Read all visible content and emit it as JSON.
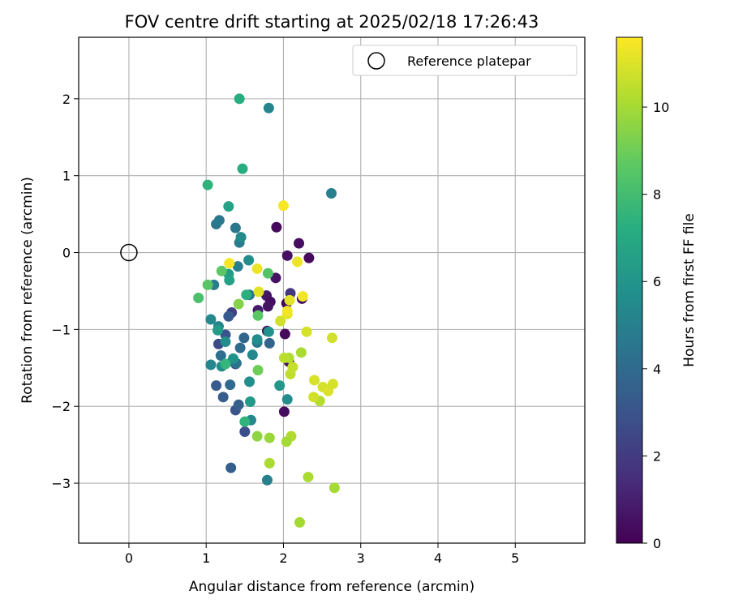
{
  "chart_data": {
    "type": "scatter",
    "title": "FOV centre drift starting at 2025/02/18 17:26:43",
    "xlabel": "Angular distance from reference (arcmin)",
    "ylabel": "Rotation from reference (arcmin)",
    "xlim": [
      -0.65,
      5.9
    ],
    "ylim": [
      -3.78,
      2.8
    ],
    "xticks": [
      0,
      1,
      2,
      3,
      4,
      5
    ],
    "yticks": [
      -3,
      -2,
      -1,
      0,
      1,
      2
    ],
    "grid": true,
    "legend": {
      "placement": "top-right",
      "entries": [
        "Reference platepar"
      ]
    },
    "reference_point": {
      "x": 0,
      "y": 0
    },
    "colorbar": {
      "label": "Hours from first FF file",
      "colormap": "viridis",
      "range": [
        0,
        11.6
      ],
      "ticks": [
        0,
        2,
        4,
        6,
        8,
        10
      ]
    },
    "points": [
      {
        "x": 1.91,
        "y": 0.33,
        "c": 0.3
      },
      {
        "x": 2.2,
        "y": 0.12,
        "c": 0.4
      },
      {
        "x": 2.05,
        "y": -0.04,
        "c": 0.5
      },
      {
        "x": 2.33,
        "y": -0.07,
        "c": 0.3
      },
      {
        "x": 1.9,
        "y": -0.33,
        "c": 0.6
      },
      {
        "x": 2.24,
        "y": -0.6,
        "c": 0.5
      },
      {
        "x": 1.78,
        "y": -0.56,
        "c": 0.7
      },
      {
        "x": 1.83,
        "y": -0.64,
        "c": 0.4
      },
      {
        "x": 1.8,
        "y": -0.7,
        "c": 0.6
      },
      {
        "x": 1.67,
        "y": -0.75,
        "c": 0.8
      },
      {
        "x": 2.04,
        "y": -0.66,
        "c": 0.2
      },
      {
        "x": 1.79,
        "y": -1.02,
        "c": 0.5
      },
      {
        "x": 2.02,
        "y": -1.06,
        "c": 0.3
      },
      {
        "x": 2.07,
        "y": -1.42,
        "c": 0.6
      },
      {
        "x": 2.01,
        "y": -2.07,
        "c": 0.4
      },
      {
        "x": 2.09,
        "y": -0.53,
        "c": 1.8
      },
      {
        "x": 1.33,
        "y": -0.78,
        "c": 2.2
      },
      {
        "x": 1.38,
        "y": -1.45,
        "c": 2.5
      },
      {
        "x": 1.16,
        "y": -1.19,
        "c": 2.6
      },
      {
        "x": 1.5,
        "y": -2.33,
        "c": 2.8
      },
      {
        "x": 1.32,
        "y": -2.8,
        "c": 3.5
      },
      {
        "x": 1.25,
        "y": -1.07,
        "c": 3.0
      },
      {
        "x": 1.29,
        "y": -0.83,
        "c": 3.2
      },
      {
        "x": 1.22,
        "y": -1.88,
        "c": 3.4
      },
      {
        "x": 1.38,
        "y": -2.05,
        "c": 3.0
      },
      {
        "x": 1.42,
        "y": -1.98,
        "c": 3.6
      },
      {
        "x": 1.13,
        "y": -1.73,
        "c": 3.3
      },
      {
        "x": 1.31,
        "y": -1.72,
        "c": 4.0
      },
      {
        "x": 1.19,
        "y": -1.34,
        "c": 4.2
      },
      {
        "x": 1.44,
        "y": -1.24,
        "c": 4.0
      },
      {
        "x": 1.49,
        "y": -1.11,
        "c": 3.8
      },
      {
        "x": 1.34,
        "y": -1.41,
        "c": 3.9
      },
      {
        "x": 1.39,
        "y": -1.44,
        "c": 4.4
      },
      {
        "x": 1.82,
        "y": -1.18,
        "c": 3.7
      },
      {
        "x": 1.66,
        "y": -1.17,
        "c": 4.5
      },
      {
        "x": 1.56,
        "y": -0.55,
        "c": 4.3
      },
      {
        "x": 1.38,
        "y": 0.32,
        "c": 4.6
      },
      {
        "x": 1.13,
        "y": 0.37,
        "c": 4.4
      },
      {
        "x": 1.17,
        "y": 0.42,
        "c": 4.7
      },
      {
        "x": 1.43,
        "y": 0.13,
        "c": 4.8
      },
      {
        "x": 1.41,
        "y": -0.18,
        "c": 4.9
      },
      {
        "x": 1.1,
        "y": -0.42,
        "c": 4.8
      },
      {
        "x": 1.81,
        "y": 1.88,
        "c": 5.2
      },
      {
        "x": 1.79,
        "y": -2.96,
        "c": 5.0
      },
      {
        "x": 2.62,
        "y": 0.77,
        "c": 5.0
      },
      {
        "x": 1.06,
        "y": -1.46,
        "c": 5.3
      },
      {
        "x": 1.06,
        "y": -0.87,
        "c": 5.4
      },
      {
        "x": 1.16,
        "y": -0.96,
        "c": 5.2
      },
      {
        "x": 1.25,
        "y": -1.16,
        "c": 5.6
      },
      {
        "x": 1.45,
        "y": 0.2,
        "c": 5.5
      },
      {
        "x": 1.55,
        "y": -0.1,
        "c": 5.6
      },
      {
        "x": 1.6,
        "y": -1.33,
        "c": 5.4
      },
      {
        "x": 1.56,
        "y": -1.68,
        "c": 5.7
      },
      {
        "x": 1.58,
        "y": -2.18,
        "c": 5.4
      },
      {
        "x": 1.2,
        "y": -1.48,
        "c": 5.7
      },
      {
        "x": 1.35,
        "y": -1.38,
        "c": 5.9
      },
      {
        "x": 1.66,
        "y": -1.13,
        "c": 5.6
      },
      {
        "x": 2.05,
        "y": -1.91,
        "c": 5.6
      },
      {
        "x": 1.81,
        "y": -1.03,
        "c": 5.8
      },
      {
        "x": 1.95,
        "y": -1.73,
        "c": 6.1
      },
      {
        "x": 1.29,
        "y": -0.28,
        "c": 6.4
      },
      {
        "x": 1.15,
        "y": -1.01,
        "c": 6.3
      },
      {
        "x": 1.29,
        "y": 0.6,
        "c": 6.6
      },
      {
        "x": 1.3,
        "y": -0.36,
        "c": 6.6
      },
      {
        "x": 1.57,
        "y": -1.94,
        "c": 6.2
      },
      {
        "x": 1.43,
        "y": 2.0,
        "c": 7.2
      },
      {
        "x": 1.47,
        "y": 1.09,
        "c": 7.2
      },
      {
        "x": 1.02,
        "y": 0.88,
        "c": 7.4
      },
      {
        "x": 1.52,
        "y": -0.55,
        "c": 7.3
      },
      {
        "x": 1.5,
        "y": -2.2,
        "c": 7.5
      },
      {
        "x": 1.25,
        "y": -1.45,
        "c": 7.6
      },
      {
        "x": 0.9,
        "y": -0.59,
        "c": 8.2
      },
      {
        "x": 1.02,
        "y": -0.42,
        "c": 8.5
      },
      {
        "x": 1.2,
        "y": -0.24,
        "c": 8.6
      },
      {
        "x": 1.8,
        "y": -0.27,
        "c": 8.4
      },
      {
        "x": 1.67,
        "y": -0.82,
        "c": 8.6
      },
      {
        "x": 1.67,
        "y": -1.53,
        "c": 9.0
      },
      {
        "x": 1.42,
        "y": -0.67,
        "c": 9.4
      },
      {
        "x": 1.66,
        "y": -2.39,
        "c": 9.6
      },
      {
        "x": 1.82,
        "y": -2.41,
        "c": 9.8
      },
      {
        "x": 1.82,
        "y": -2.74,
        "c": 10.1
      },
      {
        "x": 2.1,
        "y": -2.39,
        "c": 10.2
      },
      {
        "x": 2.04,
        "y": -2.46,
        "c": 10.0
      },
      {
        "x": 2.21,
        "y": -3.51,
        "c": 10.0
      },
      {
        "x": 2.32,
        "y": -2.92,
        "c": 10.1
      },
      {
        "x": 2.66,
        "y": -3.06,
        "c": 10.0
      },
      {
        "x": 2.07,
        "y": -1.37,
        "c": 10.2
      },
      {
        "x": 2.23,
        "y": -1.3,
        "c": 10.1
      },
      {
        "x": 2.01,
        "y": -1.37,
        "c": 10.4
      },
      {
        "x": 2.09,
        "y": -1.58,
        "c": 10.5
      },
      {
        "x": 2.12,
        "y": -1.49,
        "c": 10.6
      },
      {
        "x": 2.47,
        "y": -1.93,
        "c": 10.3
      },
      {
        "x": 2.39,
        "y": -1.88,
        "c": 10.8
      },
      {
        "x": 1.96,
        "y": -0.89,
        "c": 10.8
      },
      {
        "x": 2.3,
        "y": -1.03,
        "c": 10.9
      },
      {
        "x": 2.4,
        "y": -1.66,
        "c": 10.9
      },
      {
        "x": 2.51,
        "y": -1.75,
        "c": 10.9
      },
      {
        "x": 2.58,
        "y": -1.8,
        "c": 11.0
      },
      {
        "x": 2.64,
        "y": -1.71,
        "c": 10.9
      },
      {
        "x": 2.63,
        "y": -1.11,
        "c": 10.8
      },
      {
        "x": 1.68,
        "y": -0.51,
        "c": 11.1
      },
      {
        "x": 2.05,
        "y": -0.8,
        "c": 11.2
      },
      {
        "x": 2.08,
        "y": -0.62,
        "c": 11.1
      },
      {
        "x": 2.25,
        "y": -0.57,
        "c": 11.4
      },
      {
        "x": 2.18,
        "y": -0.12,
        "c": 11.3
      },
      {
        "x": 1.66,
        "y": -0.21,
        "c": 11.3
      },
      {
        "x": 1.3,
        "y": -0.14,
        "c": 11.5
      },
      {
        "x": 2.0,
        "y": 0.61,
        "c": 11.5
      },
      {
        "x": 2.05,
        "y": -0.76,
        "c": 11.4
      }
    ]
  }
}
